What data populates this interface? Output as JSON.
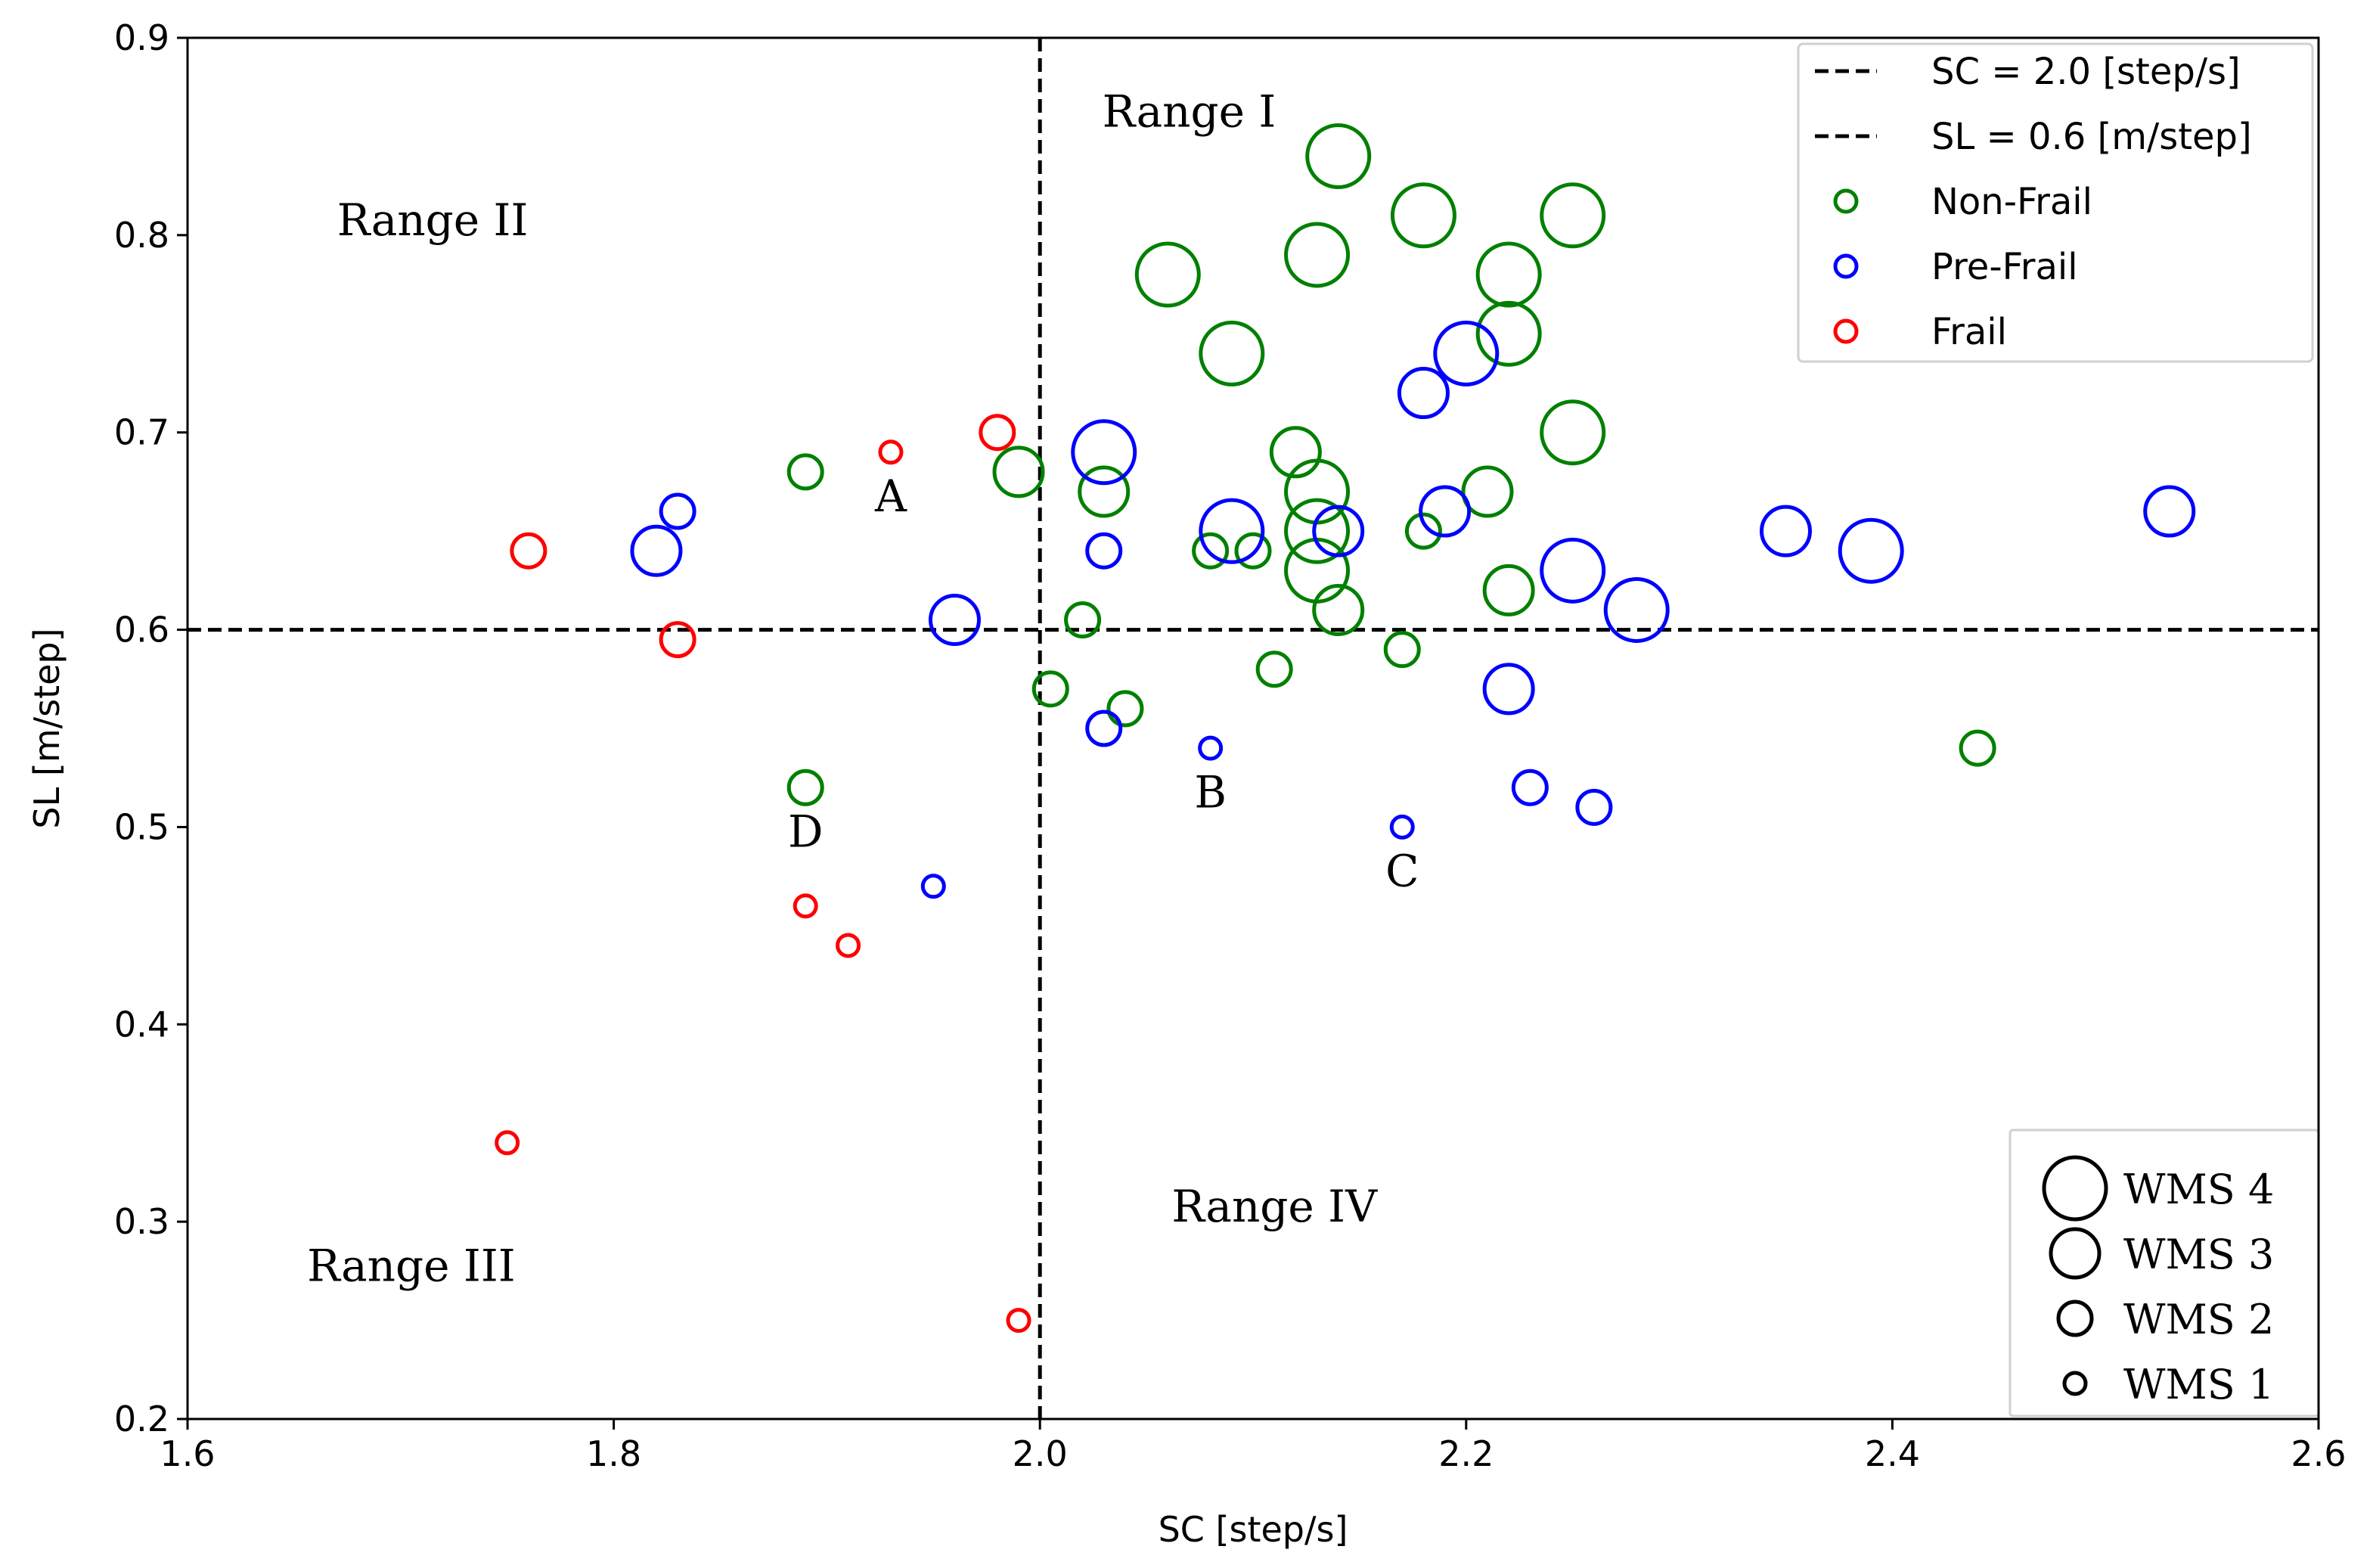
{
  "chart_data": {
    "type": "scatter",
    "xlabel": "SC [step/s]",
    "ylabel": "SL [m/step]",
    "xlim": [
      1.6,
      2.6
    ],
    "ylim": [
      0.2,
      0.9
    ],
    "x_ticks": [
      1.6,
      1.8,
      2.0,
      2.2,
      2.4,
      2.6
    ],
    "y_ticks": [
      0.2,
      0.3,
      0.4,
      0.5,
      0.6,
      0.7,
      0.8,
      0.9
    ],
    "x_tick_labels": [
      "1.6",
      "1.8",
      "2.0",
      "2.2",
      "2.4",
      "2.6"
    ],
    "y_tick_labels": [
      "0.2",
      "0.3",
      "0.4",
      "0.5",
      "0.6",
      "0.7",
      "0.8",
      "0.9"
    ],
    "grid": false,
    "legend_position": "top-right",
    "reference_lines": [
      {
        "orientation": "vertical",
        "value": 2.0,
        "label": "SC = 2.0 [step/s]",
        "style": "dashed",
        "color": "#000000"
      },
      {
        "orientation": "horizontal",
        "value": 0.6,
        "label": "SL = 0.6 [m/step]",
        "style": "dashed",
        "color": "#000000"
      }
    ],
    "series": [
      {
        "name": "Non-Frail",
        "color": "#008000",
        "points": [
          {
            "x": 2.14,
            "y": 0.84,
            "wms": 4
          },
          {
            "x": 2.18,
            "y": 0.81,
            "wms": 4
          },
          {
            "x": 2.25,
            "y": 0.81,
            "wms": 4
          },
          {
            "x": 2.13,
            "y": 0.79,
            "wms": 4
          },
          {
            "x": 2.06,
            "y": 0.78,
            "wms": 4
          },
          {
            "x": 2.22,
            "y": 0.78,
            "wms": 4
          },
          {
            "x": 2.22,
            "y": 0.75,
            "wms": 4
          },
          {
            "x": 2.09,
            "y": 0.74,
            "wms": 4
          },
          {
            "x": 2.25,
            "y": 0.7,
            "wms": 4
          },
          {
            "x": 2.12,
            "y": 0.69,
            "wms": 3
          },
          {
            "x": 1.99,
            "y": 0.68,
            "wms": 3
          },
          {
            "x": 1.89,
            "y": 0.68,
            "wms": 2
          },
          {
            "x": 2.03,
            "y": 0.67,
            "wms": 3
          },
          {
            "x": 2.13,
            "y": 0.67,
            "wms": 4
          },
          {
            "x": 2.21,
            "y": 0.67,
            "wms": 3
          },
          {
            "x": 2.13,
            "y": 0.65,
            "wms": 4
          },
          {
            "x": 2.18,
            "y": 0.65,
            "wms": 2
          },
          {
            "x": 2.08,
            "y": 0.64,
            "wms": 2
          },
          {
            "x": 2.1,
            "y": 0.64,
            "wms": 2
          },
          {
            "x": 2.13,
            "y": 0.63,
            "wms": 4
          },
          {
            "x": 2.22,
            "y": 0.62,
            "wms": 3
          },
          {
            "x": 2.14,
            "y": 0.61,
            "wms": 3
          },
          {
            "x": 2.02,
            "y": 0.605,
            "wms": 2
          },
          {
            "x": 2.17,
            "y": 0.59,
            "wms": 2
          },
          {
            "x": 2.11,
            "y": 0.58,
            "wms": 2
          },
          {
            "x": 2.005,
            "y": 0.57,
            "wms": 2
          },
          {
            "x": 2.04,
            "y": 0.56,
            "wms": 2
          },
          {
            "x": 2.44,
            "y": 0.54,
            "wms": 2
          },
          {
            "x": 1.89,
            "y": 0.52,
            "wms": 2
          }
        ]
      },
      {
        "name": "Pre-Frail",
        "color": "#0000ff",
        "points": [
          {
            "x": 2.2,
            "y": 0.74,
            "wms": 4
          },
          {
            "x": 2.18,
            "y": 0.72,
            "wms": 3
          },
          {
            "x": 2.03,
            "y": 0.69,
            "wms": 4
          },
          {
            "x": 2.19,
            "y": 0.66,
            "wms": 3
          },
          {
            "x": 2.53,
            "y": 0.66,
            "wms": 3
          },
          {
            "x": 1.83,
            "y": 0.66,
            "wms": 2
          },
          {
            "x": 2.09,
            "y": 0.65,
            "wms": 4
          },
          {
            "x": 2.14,
            "y": 0.65,
            "wms": 3
          },
          {
            "x": 2.35,
            "y": 0.65,
            "wms": 3
          },
          {
            "x": 1.82,
            "y": 0.64,
            "wms": 3
          },
          {
            "x": 2.03,
            "y": 0.64,
            "wms": 2
          },
          {
            "x": 2.39,
            "y": 0.64,
            "wms": 4
          },
          {
            "x": 2.25,
            "y": 0.63,
            "wms": 4
          },
          {
            "x": 2.28,
            "y": 0.61,
            "wms": 4
          },
          {
            "x": 1.96,
            "y": 0.605,
            "wms": 3
          },
          {
            "x": 2.22,
            "y": 0.57,
            "wms": 3
          },
          {
            "x": 2.03,
            "y": 0.55,
            "wms": 2
          },
          {
            "x": 2.08,
            "y": 0.54,
            "wms": 1
          },
          {
            "x": 2.23,
            "y": 0.52,
            "wms": 2
          },
          {
            "x": 2.26,
            "y": 0.51,
            "wms": 2
          },
          {
            "x": 2.17,
            "y": 0.5,
            "wms": 1
          },
          {
            "x": 1.95,
            "y": 0.47,
            "wms": 1
          }
        ]
      },
      {
        "name": "Frail",
        "color": "#ff0000",
        "points": [
          {
            "x": 1.98,
            "y": 0.7,
            "wms": 2
          },
          {
            "x": 1.93,
            "y": 0.69,
            "wms": 1
          },
          {
            "x": 1.76,
            "y": 0.64,
            "wms": 2
          },
          {
            "x": 1.83,
            "y": 0.595,
            "wms": 2
          },
          {
            "x": 1.89,
            "y": 0.46,
            "wms": 1
          },
          {
            "x": 1.91,
            "y": 0.44,
            "wms": 1
          },
          {
            "x": 1.75,
            "y": 0.34,
            "wms": 1
          },
          {
            "x": 1.99,
            "y": 0.25,
            "wms": 1
          }
        ]
      }
    ],
    "annotations": [
      {
        "text": "Range I",
        "x": 2.07,
        "y": 0.855
      },
      {
        "text": "Range II",
        "x": 1.715,
        "y": 0.8
      },
      {
        "text": "Range III",
        "x": 1.705,
        "y": 0.27
      },
      {
        "text": "Range IV",
        "x": 2.11,
        "y": 0.3
      },
      {
        "text": "A",
        "x": 1.93,
        "y": 0.66
      },
      {
        "text": "B",
        "x": 2.08,
        "y": 0.51
      },
      {
        "text": "C",
        "x": 2.17,
        "y": 0.47
      },
      {
        "text": "D",
        "x": 1.89,
        "y": 0.49
      }
    ],
    "legend": {
      "entries": [
        "SC = 2.0 [step/s]",
        "SL = 0.6 [m/step]",
        "Non-Frail",
        "Pre-Frail",
        "Frail"
      ]
    },
    "size_legend": {
      "position": "bottom-right",
      "entries": [
        {
          "label": "WMS 4",
          "wms": 4
        },
        {
          "label": "WMS 3",
          "wms": 3
        },
        {
          "label": "WMS 2",
          "wms": 2
        },
        {
          "label": "WMS 1",
          "wms": 1
        }
      ]
    }
  }
}
